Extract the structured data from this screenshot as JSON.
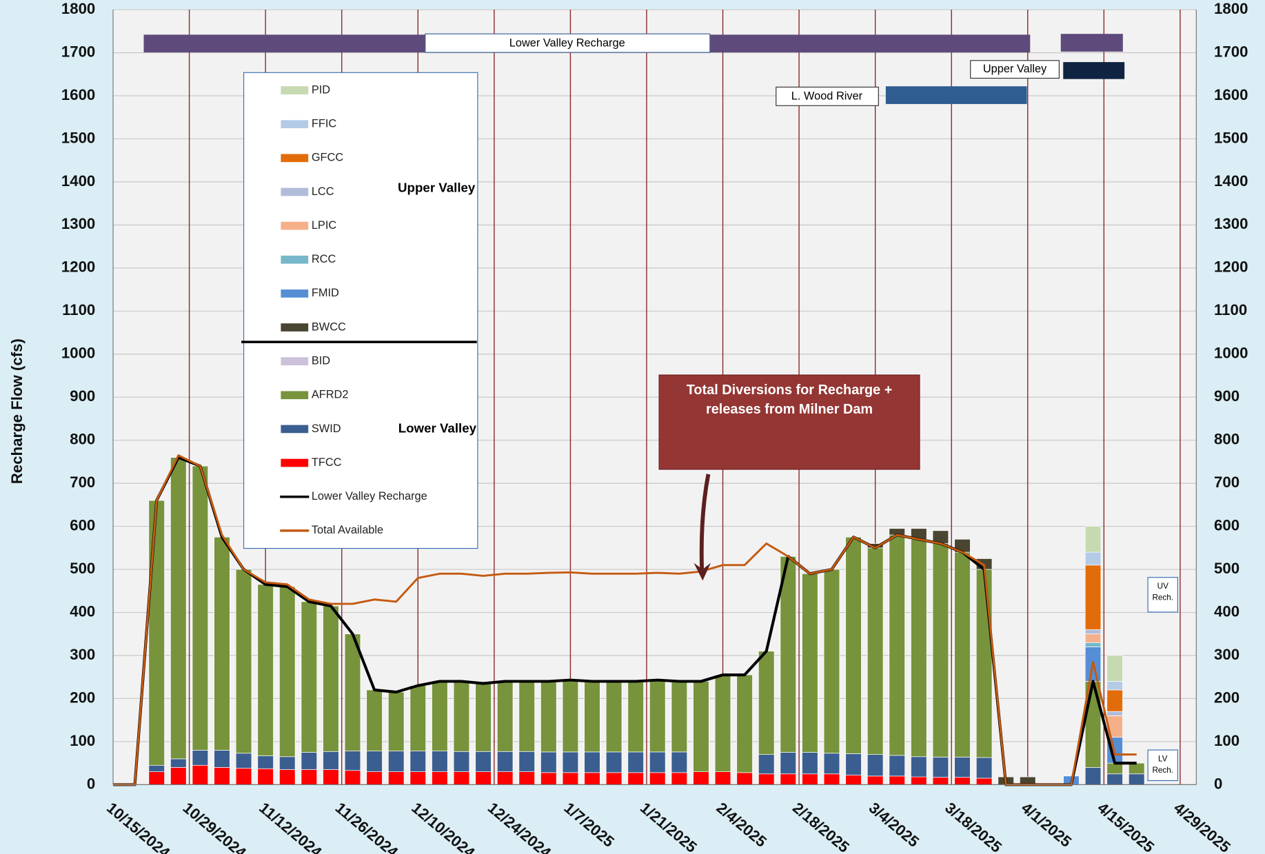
{
  "chart_data": {
    "type": "bar",
    "y_label": "Recharge Flow (cfs)",
    "ylim": [
      0,
      1800
    ],
    "yticks": [
      0,
      100,
      200,
      300,
      400,
      500,
      600,
      700,
      800,
      900,
      1000,
      1100,
      1200,
      1300,
      1400,
      1500,
      1600,
      1700,
      1800
    ],
    "xlim": [
      "10/15/2024",
      "4/29/2025"
    ],
    "xticks": [
      "10/15/2024",
      "10/29/2024",
      "11/12/2024",
      "11/26/2024",
      "12/10/2024",
      "12/24/2024",
      "1/7/2025",
      "1/21/2025",
      "2/4/2025",
      "2/18/2025",
      "3/4/2025",
      "3/18/2025",
      "4/1/2025",
      "4/15/2025",
      "4/29/2025"
    ],
    "grid": true,
    "x": [
      "10/15/2024",
      "10/19/2024",
      "10/23/2024",
      "10/27/2024",
      "10/31/2024",
      "11/4/2024",
      "11/8/2024",
      "11/12/2024",
      "11/16/2024",
      "11/20/2024",
      "11/24/2024",
      "11/28/2024",
      "12/2/2024",
      "12/6/2024",
      "12/10/2024",
      "12/14/2024",
      "12/18/2024",
      "12/22/2024",
      "12/26/2024",
      "12/30/2024",
      "1/3/2025",
      "1/7/2025",
      "1/11/2025",
      "1/15/2025",
      "1/19/2025",
      "1/23/2025",
      "1/27/2025",
      "1/31/2025",
      "2/4/2025",
      "2/8/2025",
      "2/12/2025",
      "2/16/2025",
      "2/20/2025",
      "2/24/2025",
      "2/28/2025",
      "3/4/2025",
      "3/8/2025",
      "3/12/2025",
      "3/16/2025",
      "3/20/2025",
      "3/24/2025",
      "3/28/2025",
      "4/1/2025",
      "4/5/2025",
      "4/9/2025",
      "4/13/2025",
      "4/17/2025",
      "4/21/2025"
    ],
    "series": [
      {
        "name": "PID",
        "color": "#c6d9b0",
        "values": [
          0,
          0,
          0,
          0,
          0,
          0,
          0,
          0,
          0,
          0,
          0,
          0,
          0,
          0,
          0,
          0,
          0,
          0,
          0,
          0,
          0,
          0,
          0,
          0,
          0,
          0,
          0,
          0,
          0,
          0,
          0,
          0,
          0,
          0,
          0,
          0,
          0,
          0,
          0,
          0,
          0,
          0,
          0,
          0,
          0,
          60,
          60,
          0
        ]
      },
      {
        "name": "FFIC",
        "color": "#b4cbe6",
        "values": [
          0,
          0,
          0,
          0,
          0,
          0,
          0,
          0,
          0,
          0,
          0,
          0,
          0,
          0,
          0,
          0,
          0,
          0,
          0,
          0,
          0,
          0,
          0,
          0,
          0,
          0,
          0,
          0,
          0,
          0,
          0,
          0,
          0,
          0,
          0,
          0,
          0,
          0,
          0,
          0,
          0,
          0,
          0,
          0,
          0,
          30,
          20,
          0
        ]
      },
      {
        "name": "GFCC",
        "color": "#e36c0a",
        "values": [
          0,
          0,
          0,
          0,
          0,
          0,
          0,
          0,
          0,
          0,
          0,
          0,
          0,
          0,
          0,
          0,
          0,
          0,
          0,
          0,
          0,
          0,
          0,
          0,
          0,
          0,
          0,
          0,
          0,
          0,
          0,
          0,
          0,
          0,
          0,
          0,
          0,
          0,
          0,
          0,
          0,
          0,
          0,
          0,
          0,
          150,
          50,
          0
        ]
      },
      {
        "name": "LCC",
        "color": "#b1bcd9",
        "values": [
          0,
          0,
          0,
          0,
          0,
          0,
          0,
          0,
          0,
          0,
          0,
          0,
          0,
          0,
          0,
          0,
          0,
          0,
          0,
          0,
          0,
          0,
          0,
          0,
          0,
          0,
          0,
          0,
          0,
          0,
          0,
          0,
          0,
          0,
          0,
          0,
          0,
          0,
          0,
          0,
          0,
          0,
          0,
          0,
          0,
          10,
          10,
          0
        ]
      },
      {
        "name": "LPIC",
        "color": "#f5b08a",
        "values": [
          0,
          0,
          0,
          0,
          0,
          0,
          0,
          0,
          0,
          0,
          0,
          0,
          0,
          0,
          0,
          0,
          0,
          0,
          0,
          0,
          0,
          0,
          0,
          0,
          0,
          0,
          0,
          0,
          0,
          0,
          0,
          0,
          0,
          0,
          0,
          0,
          0,
          0,
          0,
          0,
          0,
          0,
          0,
          0,
          0,
          20,
          50,
          0
        ]
      },
      {
        "name": "RCC",
        "color": "#76b7c9",
        "values": [
          0,
          0,
          0,
          0,
          0,
          0,
          0,
          0,
          0,
          0,
          0,
          0,
          0,
          0,
          0,
          0,
          0,
          0,
          0,
          0,
          0,
          0,
          0,
          0,
          0,
          0,
          0,
          0,
          0,
          0,
          0,
          0,
          0,
          0,
          0,
          0,
          0,
          0,
          0,
          0,
          0,
          0,
          0,
          0,
          0,
          10,
          0,
          0
        ]
      },
      {
        "name": "FMID",
        "color": "#558ed5",
        "values": [
          0,
          0,
          0,
          0,
          0,
          0,
          0,
          0,
          0,
          0,
          0,
          0,
          0,
          0,
          0,
          0,
          0,
          0,
          0,
          0,
          0,
          0,
          0,
          0,
          0,
          0,
          0,
          0,
          0,
          0,
          0,
          0,
          0,
          0,
          0,
          0,
          0,
          0,
          0,
          0,
          0,
          0,
          0,
          0,
          20,
          80,
          60,
          0
        ]
      },
      {
        "name": "BWCC",
        "color": "#4a4530",
        "values": [
          0,
          0,
          0,
          0,
          0,
          0,
          0,
          0,
          0,
          0,
          0,
          0,
          0,
          0,
          0,
          0,
          0,
          0,
          0,
          0,
          0,
          0,
          0,
          0,
          0,
          0,
          0,
          0,
          0,
          0,
          0,
          0,
          0,
          0,
          0,
          10,
          15,
          25,
          30,
          30,
          25,
          18,
          18,
          0,
          0,
          0,
          0,
          0
        ]
      },
      {
        "name": "BID",
        "color": "#ccc0da",
        "values": [
          0,
          0,
          0,
          0,
          0,
          0,
          0,
          0,
          0,
          0,
          0,
          0,
          0,
          0,
          0,
          0,
          0,
          0,
          0,
          0,
          0,
          0,
          0,
          0,
          0,
          0,
          0,
          0,
          0,
          0,
          0,
          0,
          0,
          0,
          0,
          0,
          0,
          0,
          0,
          0,
          0,
          0,
          0,
          0,
          0,
          0,
          0,
          0
        ]
      },
      {
        "name": "AFRD2",
        "color": "#77933c",
        "values": [
          0,
          0,
          615,
          700,
          660,
          495,
          427,
          398,
          395,
          350,
          338,
          272,
          142,
          137,
          152,
          162,
          163,
          158,
          163,
          163,
          164,
          167,
          164,
          164,
          164,
          167,
          164,
          210,
          225,
          227,
          240,
          455,
          415,
          427,
          503,
          480,
          512,
          505,
          496,
          476,
          437,
          0,
          0,
          0,
          0,
          200,
          25,
          25
        ]
      },
      {
        "name": "SWID",
        "color": "#3b5e91",
        "values": [
          0,
          0,
          15,
          20,
          35,
          40,
          35,
          30,
          30,
          40,
          42,
          45,
          48,
          48,
          48,
          48,
          47,
          47,
          47,
          47,
          48,
          48,
          48,
          48,
          48,
          48,
          48,
          0,
          0,
          0,
          45,
          50,
          50,
          48,
          50,
          50,
          48,
          47,
          47,
          47,
          48,
          0,
          0,
          0,
          0,
          40,
          25,
          25
        ]
      },
      {
        "name": "TFCC",
        "color": "#ff0000",
        "values": [
          0,
          0,
          30,
          40,
          45,
          40,
          38,
          37,
          35,
          35,
          35,
          33,
          30,
          30,
          30,
          30,
          30,
          30,
          30,
          30,
          28,
          28,
          28,
          28,
          28,
          28,
          28,
          30,
          30,
          28,
          25,
          25,
          25,
          25,
          22,
          20,
          20,
          18,
          17,
          17,
          15,
          0,
          0,
          0,
          0,
          0,
          0,
          0
        ]
      },
      {
        "name": "Lower Valley Recharge",
        "type": "line",
        "color": "#000000",
        "values": [
          0,
          0,
          660,
          760,
          740,
          575,
          500,
          465,
          460,
          425,
          415,
          350,
          220,
          215,
          230,
          240,
          240,
          235,
          240,
          240,
          240,
          243,
          240,
          240,
          240,
          243,
          240,
          240,
          255,
          255,
          310,
          530,
          490,
          500,
          575,
          550,
          580,
          570,
          560,
          540,
          500,
          0,
          0,
          0,
          0,
          240,
          50,
          50
        ]
      },
      {
        "name": "Total  Available",
        "type": "line",
        "color": "#c55a11",
        "values": [
          0,
          0,
          660,
          765,
          740,
          580,
          500,
          470,
          465,
          430,
          420,
          420,
          430,
          425,
          480,
          490,
          490,
          485,
          490,
          490,
          492,
          493,
          490,
          490,
          490,
          492,
          490,
          495,
          510,
          510,
          560,
          530,
          490,
          500,
          575,
          550,
          580,
          570,
          560,
          540,
          510,
          0,
          0,
          0,
          0,
          285,
          70,
          70
        ]
      }
    ],
    "legend_groups": [
      "Upper Valley",
      "Lower Valley"
    ],
    "timeline": [
      "Lower Valley Recharge",
      "Upper Valley",
      "L. Wood River"
    ],
    "annotation": "Total Diversions for Recharge + releases from Milner Dam",
    "markers": [
      "UV Rech.",
      "LV Rech."
    ]
  }
}
